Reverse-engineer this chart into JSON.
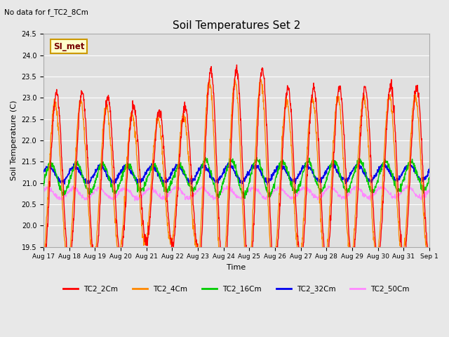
{
  "title": "Soil Temperatures Set 2",
  "xlabel": "Time",
  "ylabel": "Soil Temperature (C)",
  "no_data_text": "No data for f_TC2_8Cm",
  "annotation_text": "SI_met",
  "ylim": [
    19.5,
    24.5
  ],
  "yticks": [
    19.5,
    20.0,
    20.5,
    21.0,
    21.5,
    22.0,
    22.5,
    23.0,
    23.5,
    24.0,
    24.5
  ],
  "colors": {
    "TC2_2Cm": "#ff0000",
    "TC2_4Cm": "#ff8800",
    "TC2_16Cm": "#00cc00",
    "TC2_32Cm": "#0000ee",
    "TC2_50Cm": "#ff88ff"
  },
  "legend_labels": [
    "TC2_2Cm",
    "TC2_4Cm",
    "TC2_16Cm",
    "TC2_32Cm",
    "TC2_50Cm"
  ],
  "fig_bg_color": "#e8e8e8",
  "plot_bg_color": "#e0e0e0",
  "grid_color": "#ffffff",
  "annotation_bg": "#ffffcc",
  "annotation_border": "#cc9900"
}
